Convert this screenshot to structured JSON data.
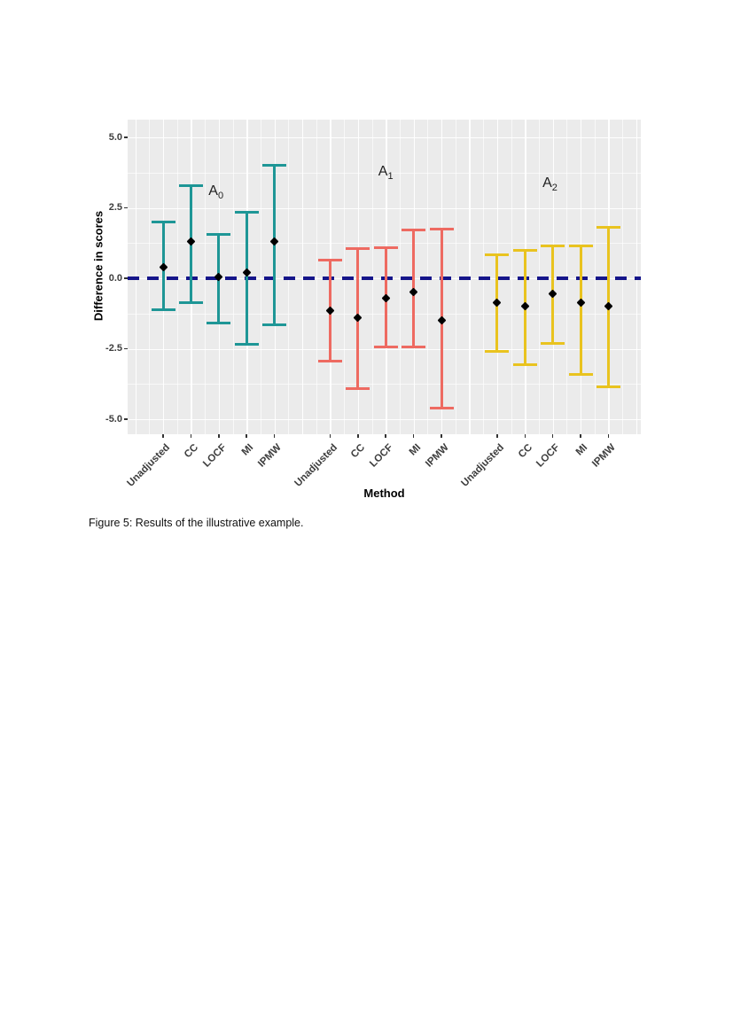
{
  "figure": {
    "caption": "Figure 5: Results of the illustrative example."
  },
  "chart_data": {
    "type": "errorbar",
    "title": "",
    "xlabel": "Method",
    "ylabel": "Difference in scores",
    "y_ticks": [
      "5.0",
      "2.5",
      "0.0",
      "-2.5",
      "-5.0"
    ],
    "y_tick_values": [
      5.0,
      2.5,
      0.0,
      -2.5,
      -5.0
    ],
    "y_minor_values": [
      3.75,
      1.25,
      -1.25,
      -3.75
    ],
    "ylim": [
      -5.5,
      5.6
    ],
    "grid": "major+minor white on gray panel",
    "panel_bg": "#ebebeb",
    "point_color": "#000000",
    "reference_line": {
      "y": 0.0,
      "color": "#15158a",
      "style": "dashed"
    },
    "methods": [
      "Unadjusted",
      "CC",
      "LOCF",
      "MI",
      "IPMW"
    ],
    "groups": [
      {
        "name": "A0",
        "label": "A",
        "subscript": "0",
        "color": "#1e9696",
        "annotation": {
          "x": 2.9,
          "y": 3.05
        },
        "series": [
          {
            "method": "Unadjusted",
            "estimate": 0.4,
            "lower": -1.1,
            "upper": 2.0
          },
          {
            "method": "CC",
            "estimate": 1.3,
            "lower": -0.85,
            "upper": 3.3
          },
          {
            "method": "LOCF",
            "estimate": 0.05,
            "lower": -1.6,
            "upper": 1.55
          },
          {
            "method": "MI",
            "estimate": 0.2,
            "lower": -2.35,
            "upper": 2.35
          },
          {
            "method": "IPMW",
            "estimate": 1.3,
            "lower": -1.65,
            "upper": 4.0
          }
        ]
      },
      {
        "name": "A1",
        "label": "A",
        "subscript": "1",
        "color": "#ee6a61",
        "annotation": {
          "x": 9.0,
          "y": 3.75
        },
        "series": [
          {
            "method": "Unadjusted",
            "estimate": -1.15,
            "lower": -2.95,
            "upper": 0.65
          },
          {
            "method": "CC",
            "estimate": -1.4,
            "lower": -3.9,
            "upper": 1.05
          },
          {
            "method": "LOCF",
            "estimate": -0.7,
            "lower": -2.45,
            "upper": 1.1
          },
          {
            "method": "MI",
            "estimate": -0.5,
            "lower": -2.45,
            "upper": 1.7
          },
          {
            "method": "IPMW",
            "estimate": -1.5,
            "lower": -4.6,
            "upper": 1.75
          }
        ]
      },
      {
        "name": "A2",
        "label": "A",
        "subscript": "2",
        "color": "#e9c31f",
        "annotation": {
          "x": 14.9,
          "y": 3.35
        },
        "series": [
          {
            "method": "Unadjusted",
            "estimate": -0.85,
            "lower": -2.6,
            "upper": 0.85
          },
          {
            "method": "CC",
            "estimate": -1.0,
            "lower": -3.05,
            "upper": 1.0
          },
          {
            "method": "LOCF",
            "estimate": -0.55,
            "lower": -2.3,
            "upper": 1.15
          },
          {
            "method": "MI",
            "estimate": -0.85,
            "lower": -3.4,
            "upper": 1.15
          },
          {
            "method": "IPMW",
            "estimate": -1.0,
            "lower": -3.85,
            "upper": 1.8
          }
        ]
      }
    ]
  }
}
